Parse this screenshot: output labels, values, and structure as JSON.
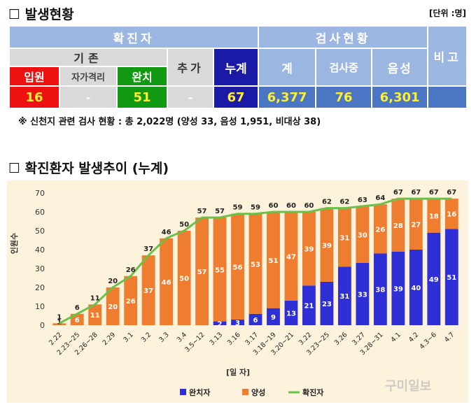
{
  "section1": {
    "title": "발생현황",
    "unit": "[단위 :명]"
  },
  "table": {
    "confirmed_header": "확진자",
    "test_header": "검사현황",
    "remark_header": "비고",
    "existing_header": "기존",
    "admitted_label": "입원",
    "self_isolation_label": "자가격리",
    "cured_label": "완치",
    "added_label": "추가",
    "cumulative_label": "누계",
    "total_label": "계",
    "testing_label": "검사중",
    "negative_label": "음성",
    "admitted_value": "16",
    "self_isolation_value": "-",
    "cured_value": "51",
    "added_value": "-",
    "cumulative_value": "67",
    "total_value": "6,377",
    "testing_value": "76",
    "negative_value": "6,301"
  },
  "note": "※ 신천지 관련 검사 현황 : 총 2,022명 (양성 33, 음성 1,951, 비대상 38)",
  "section2": {
    "title": "확진환자 발생추이 (누계)"
  },
  "chart_data": {
    "type": "bar",
    "stacked": true,
    "categories": [
      "2.22",
      "2.23~25",
      "2.26~28",
      "2.29",
      "3.1",
      "3.2",
      "3.3",
      "3.4",
      "3.5~12",
      "3.13",
      "3.16",
      "3.17",
      "3.18~19",
      "3.20~21",
      "3.22",
      "3.23~25",
      "3.26",
      "3.27",
      "3.28~31",
      "4.1",
      "4.2",
      "4.3~6",
      "4.7"
    ],
    "series": [
      {
        "name": "완치자",
        "color": "#2f2fd6",
        "values": [
          0,
          0,
          0,
          0,
          0,
          0,
          0,
          0,
          0,
          2,
          3,
          6,
          9,
          13,
          21,
          23,
          31,
          33,
          38,
          39,
          40,
          49,
          51
        ]
      },
      {
        "name": "양성",
        "color": "#ee7d2f",
        "values": [
          1,
          6,
          11,
          20,
          26,
          37,
          46,
          50,
          57,
          55,
          56,
          53,
          51,
          47,
          39,
          39,
          31,
          30,
          26,
          28,
          27,
          18,
          16
        ]
      },
      {
        "name": "확진자",
        "type": "line",
        "color": "#6cc04a",
        "values": [
          1,
          6,
          11,
          20,
          26,
          37,
          46,
          50,
          57,
          57,
          59,
          59,
          60,
          60,
          60,
          62,
          62,
          63,
          64,
          67,
          67,
          67,
          67
        ]
      }
    ],
    "ylabel": "인원수",
    "xlabel": "[일 자]",
    "yticks": [
      "0",
      "10",
      "20",
      "30",
      "40",
      "50",
      "60",
      "70"
    ],
    "ylim": [
      0,
      70
    ],
    "legend_position": "bottom",
    "watermark": "구미일보"
  }
}
